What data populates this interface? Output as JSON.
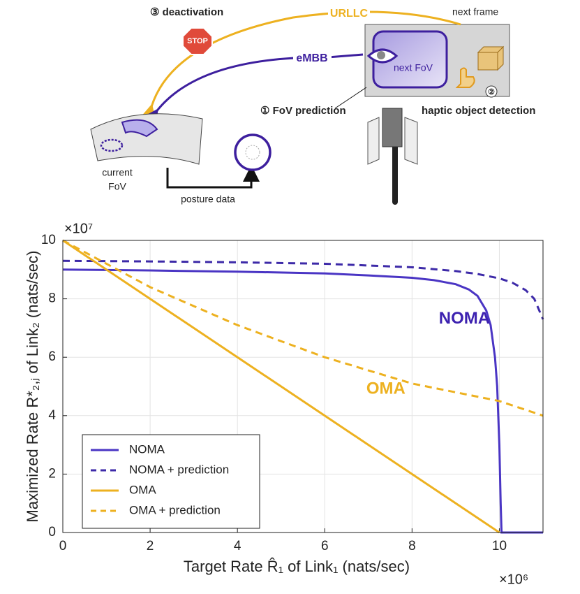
{
  "diagram": {
    "step3": "③ deactivation",
    "urllc": "URLLC",
    "next_frame": "next frame",
    "stop": "STOP",
    "embb": "eMBB",
    "next_fov": "next FoV",
    "step1": "① FoV prediction",
    "haptic": "haptic object detection",
    "step2": "②",
    "current_fov_1": "current",
    "current_fov_2": "FoV",
    "posture": "posture data"
  },
  "chart_data": {
    "type": "line",
    "xlabel": "Target Rate R̂₁ of Link₁ (nats/sec)",
    "ylabel": "Maximized Rate R*₂,ⱼ of Link₂ (nats/sec)",
    "x_multiplier": "×10⁶",
    "y_multiplier": "×10⁷",
    "xlim": [
      0,
      11
    ],
    "ylim": [
      0,
      10
    ],
    "xticks": [
      0,
      2,
      4,
      6,
      8,
      10
    ],
    "yticks": [
      0,
      2,
      4,
      6,
      8,
      10
    ],
    "grid": true,
    "legend": "lower left",
    "annotations": [
      {
        "text": "NOMA",
        "x": 9.2,
        "y": 7.3,
        "color": "#3d22b0"
      },
      {
        "text": "OMA",
        "x": 7.4,
        "y": 4.9,
        "color": "#edb120"
      }
    ],
    "series": [
      {
        "name": "NOMA",
        "color": "#4a35c4",
        "dash": false,
        "x": [
          0,
          2,
          4,
          6,
          7,
          8,
          8.5,
          9,
          9.3,
          9.5,
          9.7,
          9.8,
          9.9,
          9.95,
          10,
          10.03,
          10.05,
          11
        ],
        "values": [
          9.0,
          8.97,
          8.93,
          8.87,
          8.8,
          8.72,
          8.64,
          8.5,
          8.32,
          8.1,
          7.6,
          7.1,
          6.0,
          5.0,
          3.0,
          1.0,
          0,
          0
        ]
      },
      {
        "name": "NOMA + prediction",
        "color": "#3d2aa8",
        "dash": true,
        "x": [
          0,
          2,
          4,
          6,
          8,
          9,
          9.5,
          10,
          10.3,
          10.6,
          10.8,
          11
        ],
        "values": [
          9.3,
          9.28,
          9.25,
          9.2,
          9.08,
          8.95,
          8.85,
          8.7,
          8.55,
          8.3,
          8.0,
          7.3
        ]
      },
      {
        "name": "OMA",
        "color": "#edb120",
        "dash": false,
        "x": [
          0,
          10
        ],
        "values": [
          10,
          0
        ]
      },
      {
        "name": "OMA + prediction",
        "color": "#edb120",
        "dash": true,
        "x": [
          0,
          2,
          4,
          6,
          8,
          10,
          11
        ],
        "values": [
          10,
          8.4,
          7.1,
          6.0,
          5.1,
          4.5,
          4.0
        ]
      }
    ]
  }
}
